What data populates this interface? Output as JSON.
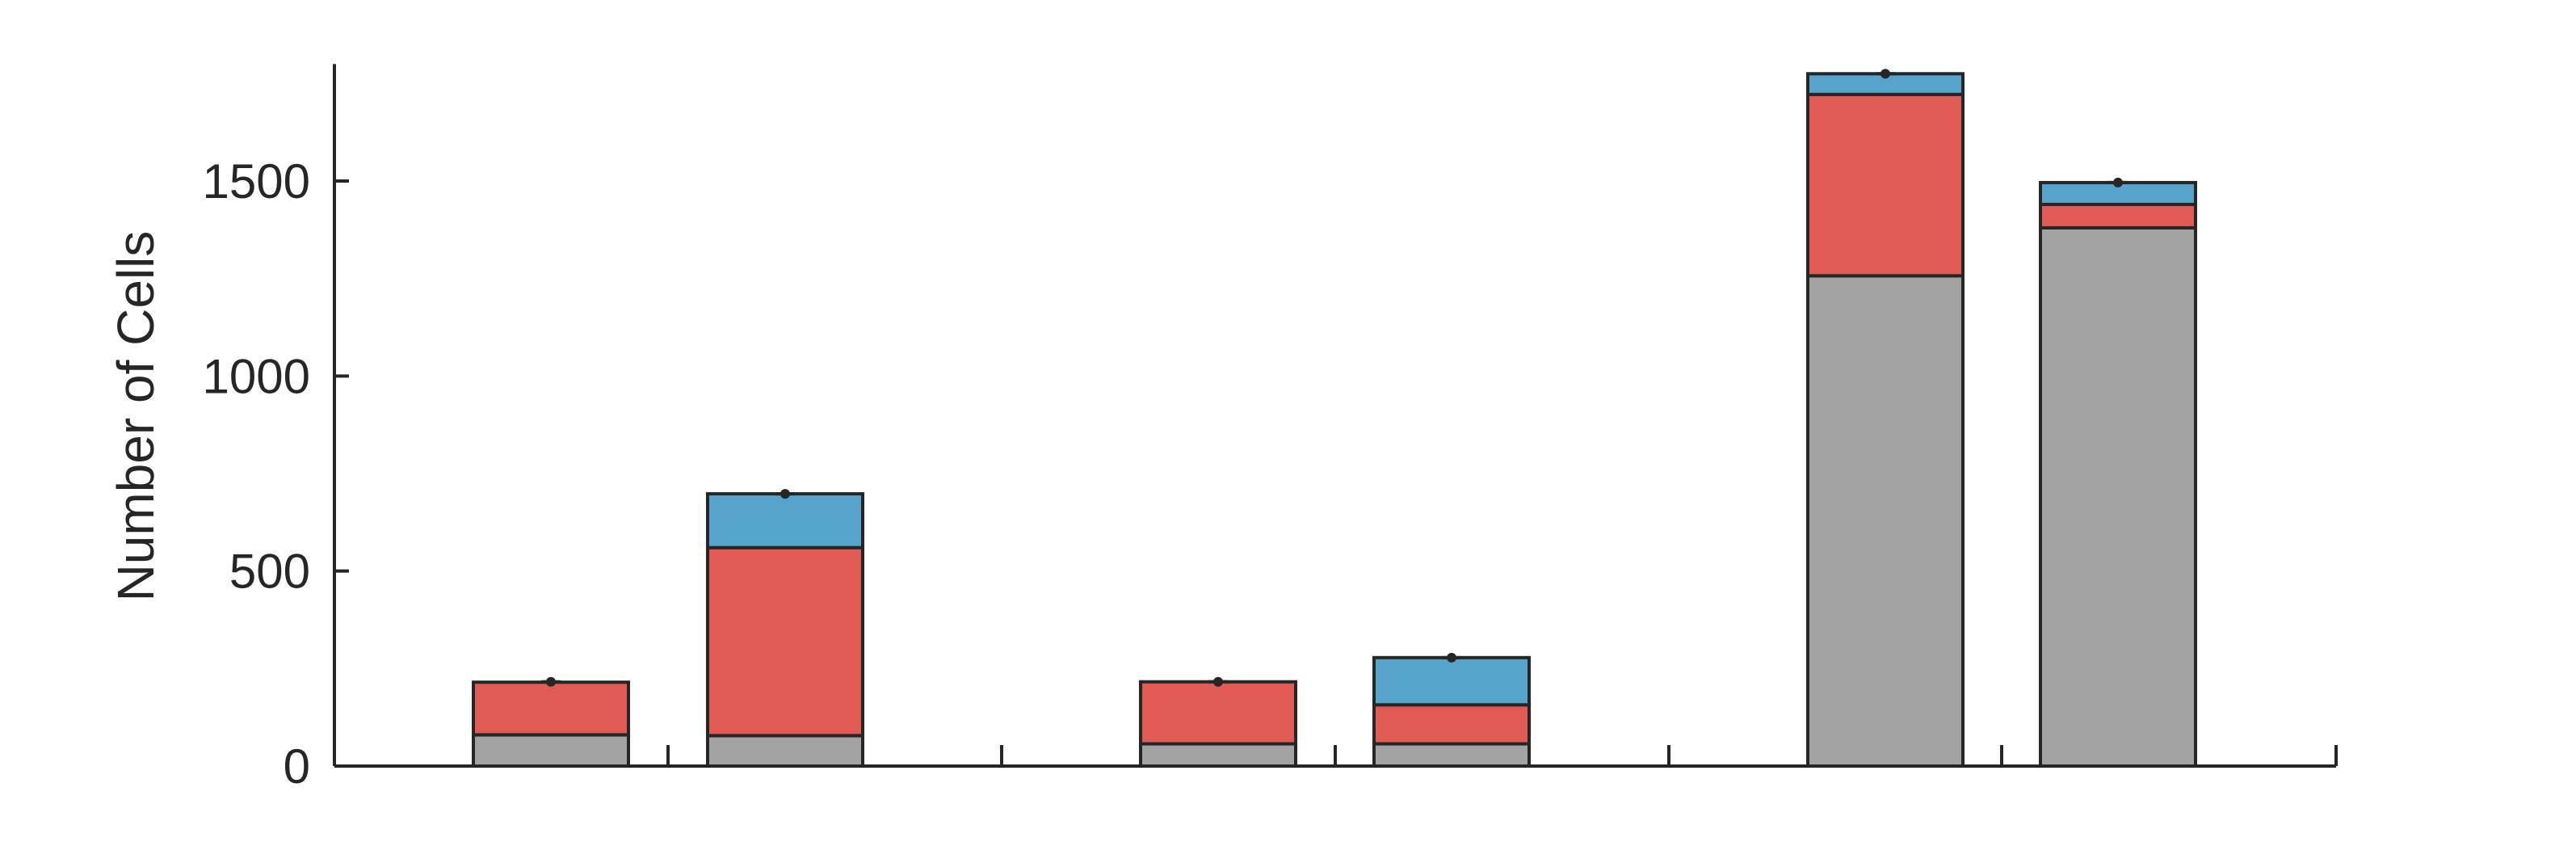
{
  "chart_data": {
    "type": "bar",
    "stacked": true,
    "title": "",
    "xlabel": "",
    "ylabel": "Number of Cells",
    "ylim": [
      0,
      1800
    ],
    "yticks": [
      0,
      500,
      1000,
      1500
    ],
    "grid": false,
    "legend": "none",
    "group_count": 3,
    "bars": [
      {
        "group": 0,
        "segments": [
          80,
          135
        ],
        "total": 216
      },
      {
        "group": 0,
        "segments": [
          78,
          482,
          138
        ],
        "total": 698
      },
      {
        "group": 1,
        "segments": [
          57,
          159
        ],
        "total": 216
      },
      {
        "group": 1,
        "segments": [
          57,
          100,
          121
        ],
        "total": 278
      },
      {
        "group": 2,
        "segments": [
          1257,
          465,
          53
        ],
        "total": 1775
      },
      {
        "group": 2,
        "segments": [
          1380,
          60,
          56
        ],
        "total": 1496
      }
    ],
    "segment_colors": [
      "#a3a3a3",
      "#e15b54",
      "#56a4cc"
    ],
    "colors": {
      "gray": "#a3a3a3",
      "red": "#e15b54",
      "blue": "#56a4cc",
      "axis": "#262626"
    }
  }
}
